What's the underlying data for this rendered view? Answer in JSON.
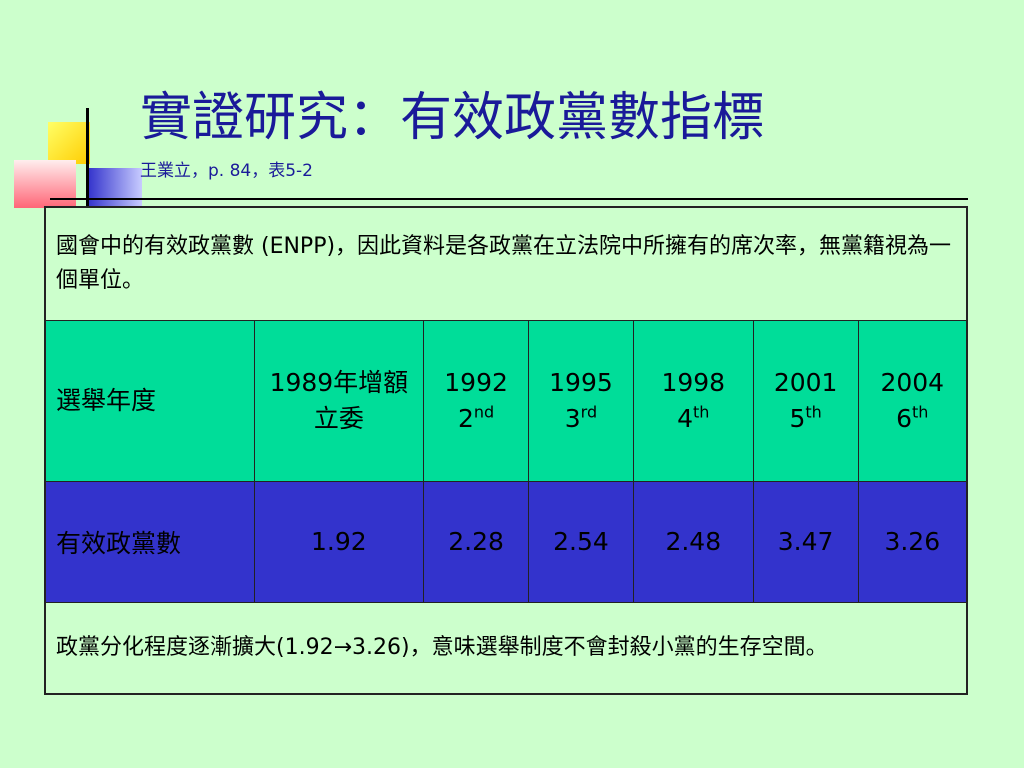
{
  "slide": {
    "title": "實證研究：有效政黨數指標",
    "subtitle": "王業立，p. 84，表5-2"
  },
  "table": {
    "description": "國會中的有效政黨數 (ENPP)，因此資料是各政黨在立法院中所擁有的席次率，無黨籍視為一個單位。",
    "year_label": "選舉年度",
    "enpp_label": "有效政黨數",
    "columns": [
      {
        "year": "1989年增額立委",
        "ordinal_num": "",
        "ordinal_suffix": "",
        "enpp": "1.92"
      },
      {
        "year": "1992",
        "ordinal_num": "2",
        "ordinal_suffix": "nd",
        "enpp": "2.28"
      },
      {
        "year": "1995",
        "ordinal_num": "3",
        "ordinal_suffix": "rd",
        "enpp": "2.54"
      },
      {
        "year": "1998",
        "ordinal_num": "4",
        "ordinal_suffix": "th",
        "enpp": "2.48"
      },
      {
        "year": "2001",
        "ordinal_num": "5",
        "ordinal_suffix": "th",
        "enpp": "3.47"
      },
      {
        "year": "2004",
        "ordinal_num": "6",
        "ordinal_suffix": "th",
        "enpp": "3.26"
      }
    ],
    "conclusion": "政黨分化程度逐漸擴大(1.92→3.26)，意味選舉制度不會封殺小黨的生存空間。"
  },
  "colors": {
    "background": "#ccffcc",
    "title": "#1a1a99",
    "year_row": "#00dd99",
    "enpp_row": "#3333cc"
  }
}
